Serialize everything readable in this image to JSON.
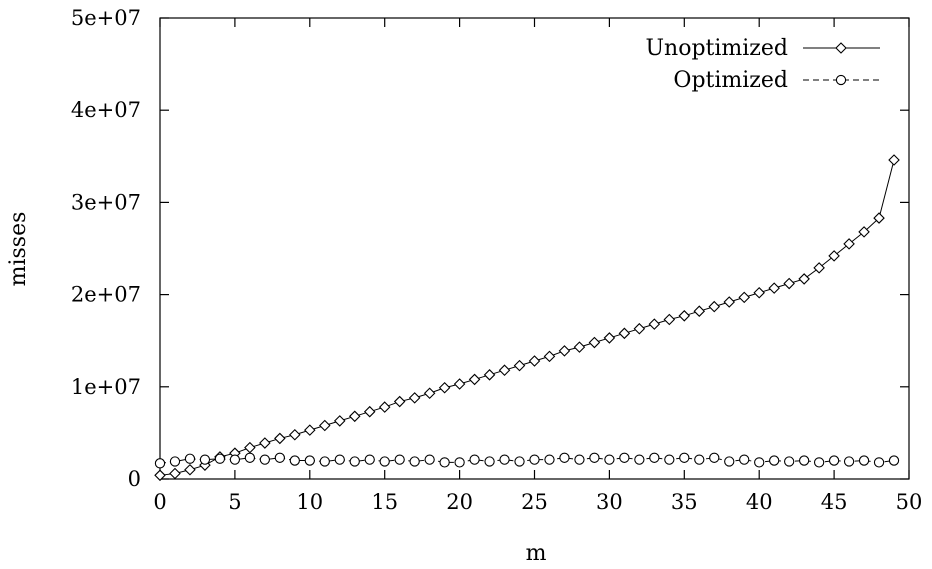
{
  "chart_data": {
    "type": "line",
    "title": "",
    "xlabel": "m",
    "ylabel": "misses",
    "xlim": [
      0,
      50
    ],
    "ylim": [
      0,
      50000000
    ],
    "xticks": [
      0,
      5,
      10,
      15,
      20,
      25,
      30,
      35,
      40,
      45,
      50
    ],
    "xtick_labels": [
      "0",
      "5",
      "10",
      "15",
      "20",
      "25",
      "30",
      "35",
      "40",
      "45",
      "50"
    ],
    "yticks": [
      0,
      10000000,
      20000000,
      30000000,
      40000000,
      50000000
    ],
    "ytick_labels": [
      "0",
      "1e+07",
      "2e+07",
      "3e+07",
      "4e+07",
      "5e+07"
    ],
    "grid": false,
    "legend_position": "top-right",
    "series": [
      {
        "name": "Unoptimized",
        "line_style": "solid",
        "marker": "diamond",
        "x": [
          0,
          1,
          2,
          3,
          4,
          5,
          6,
          7,
          8,
          9,
          10,
          11,
          12,
          13,
          14,
          15,
          16,
          17,
          18,
          19,
          20,
          21,
          22,
          23,
          24,
          25,
          26,
          27,
          28,
          29,
          30,
          31,
          32,
          33,
          34,
          35,
          36,
          37,
          38,
          39,
          40,
          41,
          42,
          43,
          44,
          45,
          46,
          47,
          48,
          49
        ],
        "y": [
          400000,
          600000,
          1000000,
          1500000,
          2400000,
          2800000,
          3400000,
          3900000,
          4400000,
          4800000,
          5300000,
          5800000,
          6300000,
          6800000,
          7300000,
          7800000,
          8400000,
          8800000,
          9300000,
          9900000,
          10300000,
          10800000,
          11300000,
          11800000,
          12300000,
          12800000,
          13300000,
          13900000,
          14300000,
          14800000,
          15300000,
          15800000,
          16300000,
          16800000,
          17300000,
          17700000,
          18200000,
          18700000,
          19200000,
          19700000,
          20200000,
          20700000,
          21200000,
          21700000,
          22900000,
          24200000,
          25500000,
          26800000,
          28300000,
          34600000
        ]
      },
      {
        "name": "Optimized",
        "line_style": "dashed",
        "marker": "circle",
        "x": [
          0,
          1,
          2,
          3,
          4,
          5,
          6,
          7,
          8,
          9,
          10,
          11,
          12,
          13,
          14,
          15,
          16,
          17,
          18,
          19,
          20,
          21,
          22,
          23,
          24,
          25,
          26,
          27,
          28,
          29,
          30,
          31,
          32,
          33,
          34,
          35,
          36,
          37,
          38,
          39,
          40,
          41,
          42,
          43,
          44,
          45,
          46,
          47,
          48,
          49
        ],
        "y": [
          1700000,
          1900000,
          2200000,
          2100000,
          2200000,
          2100000,
          2300000,
          2100000,
          2300000,
          2000000,
          2000000,
          1900000,
          2100000,
          1900000,
          2100000,
          1900000,
          2100000,
          1900000,
          2100000,
          1800000,
          1800000,
          2100000,
          1900000,
          2100000,
          1900000,
          2100000,
          2100000,
          2300000,
          2100000,
          2300000,
          2100000,
          2300000,
          2100000,
          2300000,
          2100000,
          2300000,
          2100000,
          2300000,
          1900000,
          2100000,
          1800000,
          2000000,
          1900000,
          2000000,
          1800000,
          2000000,
          1900000,
          2000000,
          1800000,
          2000000
        ]
      }
    ]
  }
}
